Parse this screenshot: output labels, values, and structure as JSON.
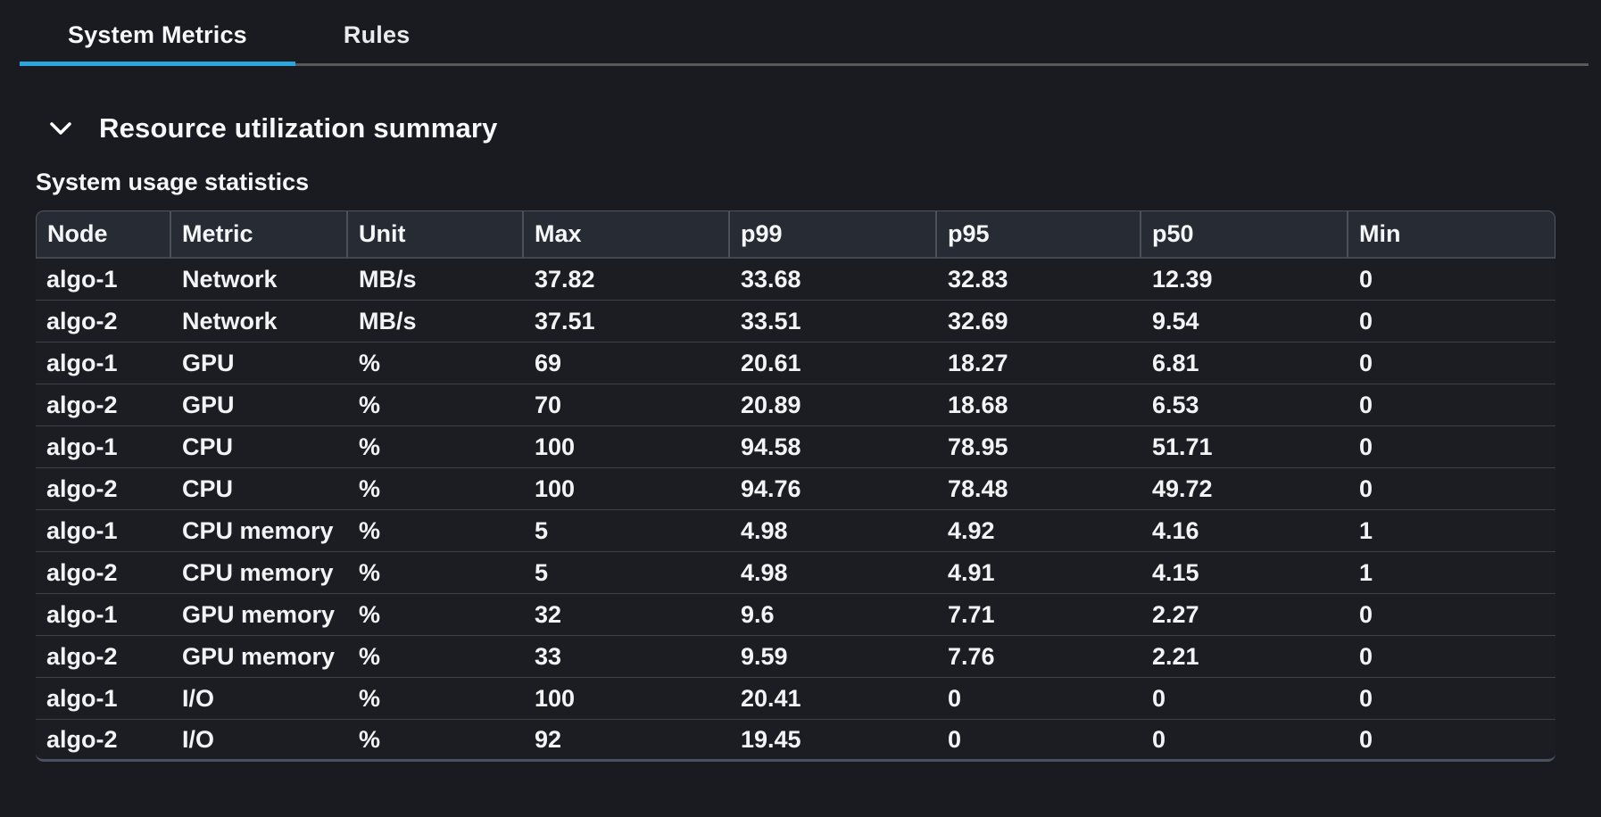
{
  "tabs": {
    "items": [
      {
        "label": "System Metrics",
        "active": true
      },
      {
        "label": "Rules",
        "active": false
      }
    ]
  },
  "section": {
    "title": "Resource utilization summary"
  },
  "table": {
    "caption": "System usage statistics",
    "columns": [
      "Node",
      "Metric",
      "Unit",
      "Max",
      "p99",
      "p95",
      "p50",
      "Min"
    ],
    "rows": [
      [
        "algo-1",
        "Network",
        "MB/s",
        "37.82",
        "33.68",
        "32.83",
        "12.39",
        "0"
      ],
      [
        "algo-2",
        "Network",
        "MB/s",
        "37.51",
        "33.51",
        "32.69",
        "9.54",
        "0"
      ],
      [
        "algo-1",
        "GPU",
        "%",
        "69",
        "20.61",
        "18.27",
        "6.81",
        "0"
      ],
      [
        "algo-2",
        "GPU",
        "%",
        "70",
        "20.89",
        "18.68",
        "6.53",
        "0"
      ],
      [
        "algo-1",
        "CPU",
        "%",
        "100",
        "94.58",
        "78.95",
        "51.71",
        "0"
      ],
      [
        "algo-2",
        "CPU",
        "%",
        "100",
        "94.76",
        "78.48",
        "49.72",
        "0"
      ],
      [
        "algo-1",
        "CPU memory",
        "%",
        "5",
        "4.98",
        "4.92",
        "4.16",
        "1"
      ],
      [
        "algo-2",
        "CPU memory",
        "%",
        "5",
        "4.98",
        "4.91",
        "4.15",
        "1"
      ],
      [
        "algo-1",
        "GPU memory",
        "%",
        "32",
        "9.6",
        "7.71",
        "2.27",
        "0"
      ],
      [
        "algo-2",
        "GPU memory",
        "%",
        "33",
        "9.59",
        "7.76",
        "2.21",
        "0"
      ],
      [
        "algo-1",
        "I/O",
        "%",
        "100",
        "20.41",
        "0",
        "0",
        "0"
      ],
      [
        "algo-2",
        "I/O",
        "%",
        "92",
        "19.45",
        "0",
        "0",
        "0"
      ]
    ]
  },
  "colors": {
    "active_tab_underline": "#2aa7dc"
  }
}
